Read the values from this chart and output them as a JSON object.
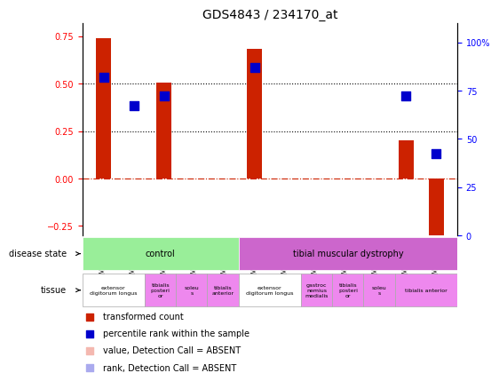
{
  "title": "GDS4843 / 234170_at",
  "samples": [
    "GSM1050271",
    "GSM1050273",
    "GSM1050270",
    "GSM1050274",
    "GSM1050272",
    "GSM1050260",
    "GSM1050263",
    "GSM1050261",
    "GSM1050265",
    "GSM1050264",
    "GSM1050262",
    "GSM1050266"
  ],
  "bar_values": [
    0.74,
    0.0,
    0.505,
    0.0,
    0.0,
    0.685,
    0.0,
    0.0,
    0.0,
    0.0,
    0.2,
    -0.32
  ],
  "dot_values": [
    0.535,
    0.385,
    0.435,
    null,
    null,
    0.585,
    null,
    null,
    null,
    null,
    0.435,
    0.13
  ],
  "dot_absent": [
    false,
    false,
    false,
    true,
    true,
    false,
    true,
    true,
    true,
    true,
    false,
    false
  ],
  "bar_absent": [
    false,
    false,
    false,
    true,
    true,
    false,
    true,
    true,
    true,
    true,
    false,
    false
  ],
  "bar_color": "#cc2200",
  "bar_absent_color": "#f4b8b0",
  "dot_color": "#0000cc",
  "dot_absent_color": "#aaaaee",
  "ylim_left": [
    -0.3,
    0.82
  ],
  "ylim_right": [
    0,
    110
  ],
  "yticks_left": [
    -0.25,
    0.0,
    0.25,
    0.5,
    0.75
  ],
  "yticks_right": [
    0,
    25,
    50,
    75,
    100
  ],
  "ytick_right_labels": [
    "0",
    "25",
    "50",
    "75",
    "100%"
  ],
  "hline_y": 0,
  "dotted_lines": [
    0.25,
    0.5
  ],
  "disease_state_groups": [
    {
      "label": "control",
      "start": 0,
      "end": 5,
      "color": "#99ee99"
    },
    {
      "label": "tibial muscular dystrophy",
      "start": 5,
      "end": 12,
      "color": "#cc66cc"
    }
  ],
  "tissue_groups": [
    {
      "label": "extensor\ndigitorum longus",
      "start": 0,
      "end": 2,
      "color": "#ffffff"
    },
    {
      "label": "tibialis\nposteri\nor",
      "start": 2,
      "end": 3,
      "color": "#ee88ee"
    },
    {
      "label": "soleu\ns",
      "start": 3,
      "end": 4,
      "color": "#ee88ee"
    },
    {
      "label": "tibialis\nanterior",
      "start": 4,
      "end": 5,
      "color": "#ee88ee"
    },
    {
      "label": "extensor\ndigitorum longus",
      "start": 5,
      "end": 7,
      "color": "#ffffff"
    },
    {
      "label": "gastroc\nnemius\nmedialis",
      "start": 7,
      "end": 8,
      "color": "#ee88ee"
    },
    {
      "label": "tibialis\nposteri\nor",
      "start": 8,
      "end": 9,
      "color": "#ee88ee"
    },
    {
      "label": "soleu\ns",
      "start": 9,
      "end": 10,
      "color": "#ee88ee"
    },
    {
      "label": "tibialis anterior",
      "start": 10,
      "end": 12,
      "color": "#ee88ee"
    }
  ],
  "legend_items": [
    {
      "label": "transformed count",
      "color": "#cc2200",
      "marker": "s"
    },
    {
      "label": "percentile rank within the sample",
      "color": "#0000cc",
      "marker": "s"
    },
    {
      "label": "value, Detection Call = ABSENT",
      "color": "#f4b8b0",
      "marker": "s"
    },
    {
      "label": "rank, Detection Call = ABSENT",
      "color": "#aaaaee",
      "marker": "s"
    }
  ],
  "bar_width": 0.5,
  "dot_size": 60
}
